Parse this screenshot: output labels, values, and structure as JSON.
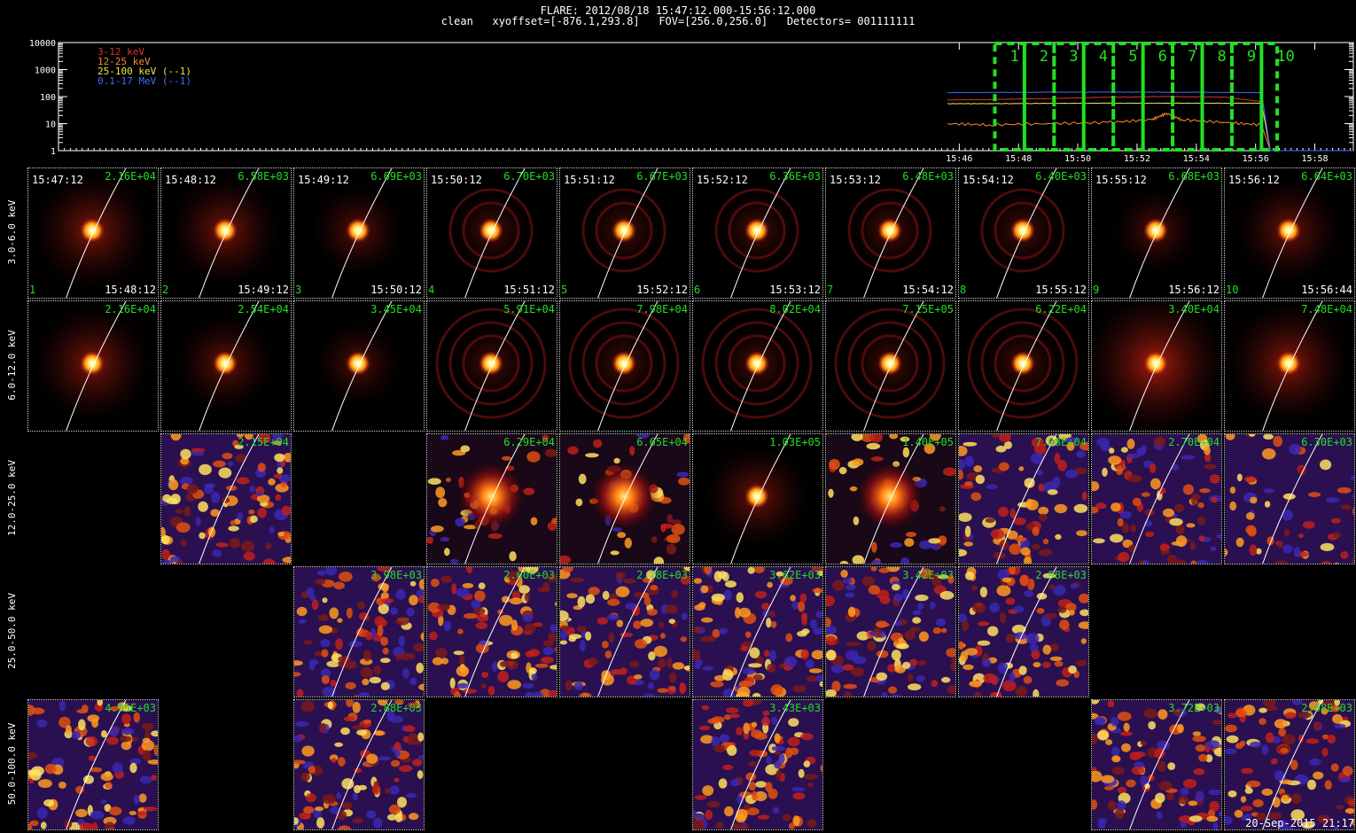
{
  "header": {
    "line1": "FLARE: 2012/08/18 15:47:12.000-15:56:12.000",
    "line2": "clean   xyoffset=[-876.1,293.8]   FOV=[256.0,256.0]   Detectors= 001111111"
  },
  "chart_data": [
    {
      "type": "line",
      "name": "lightcurve",
      "yscale": "log",
      "ylim": [
        1,
        10000
      ],
      "ytick_labels": [
        "10000",
        "1000",
        "100",
        "10",
        "1"
      ],
      "xlim_minutes": [
        15.6,
        59.3
      ],
      "x_ticks": [
        {
          "label": "15:46",
          "t": 46
        },
        {
          "label": "15:48",
          "t": 48
        },
        {
          "label": "15:50",
          "t": 50
        },
        {
          "label": "15:52",
          "t": 52
        },
        {
          "label": "15:54",
          "t": 54
        },
        {
          "label": "15:56",
          "t": 56
        },
        {
          "label": "15:58",
          "t": 58
        }
      ],
      "series": [
        {
          "name": "3-12 keV",
          "color": "#e03030",
          "x": [
            45.6,
            47,
            49,
            51,
            53,
            55,
            56.2,
            56.5
          ],
          "y": [
            75,
            78,
            85,
            95,
            100,
            95,
            65,
            1
          ]
        },
        {
          "name": "12-25 keV",
          "color": "#ff8a2a",
          "x": [
            45.6,
            47,
            49,
            51,
            52.5,
            53,
            53.5,
            55,
            56.2,
            56.5
          ],
          "y": [
            10,
            9,
            10,
            11,
            14,
            24,
            14,
            11,
            9,
            1
          ]
        },
        {
          "name": "25-100 keV (--1)",
          "color": "#e8e84a",
          "x": [
            45.6,
            47,
            49,
            51,
            53,
            55,
            56.2,
            56.5
          ],
          "y": [
            55,
            55,
            56,
            57,
            57,
            57,
            57,
            1
          ]
        },
        {
          "name": "0.1-17 MeV (--1)",
          "color": "#3f6cff",
          "x": [
            45.6,
            47,
            49,
            51,
            53,
            55,
            56.2,
            56.5,
            59.3
          ],
          "y": [
            140,
            142,
            145,
            147,
            145,
            143,
            140,
            1,
            1
          ]
        }
      ],
      "time_intervals": [
        "1",
        "2",
        "3",
        "4",
        "5",
        "6",
        "7",
        "8",
        "9",
        "10"
      ],
      "interval_bounds_minutes": [
        47.2,
        48.2,
        49.2,
        50.2,
        51.2,
        52.2,
        53.2,
        54.2,
        55.2,
        56.2,
        56.73
      ]
    },
    {
      "type": "heatmap",
      "name": "image-grid",
      "row_labels": [
        "3.0-6.0 keV",
        "6.0-12.0 keV",
        "12.0-25.0 keV",
        "25.0-50.0 keV",
        "50.0-100.0 keV"
      ],
      "rows": [
        [
          {
            "num": "1",
            "start": "15:47:12",
            "end": "15:48:12",
            "peak": "2.16E+04",
            "kind": "bright",
            "halo": 0.55
          },
          {
            "num": "2",
            "start": "15:48:12",
            "end": "15:49:12",
            "peak": "6.58E+03",
            "kind": "bright",
            "halo": 0.5
          },
          {
            "num": "3",
            "start": "15:49:12",
            "end": "15:50:12",
            "peak": "6.69E+03",
            "kind": "bright",
            "halo": 0.35
          },
          {
            "num": "4",
            "start": "15:50:12",
            "end": "15:51:12",
            "peak": "6.70E+03",
            "kind": "bright",
            "halo": 0.25,
            "rings": 2
          },
          {
            "num": "5",
            "start": "15:51:12",
            "end": "15:52:12",
            "peak": "6.67E+03",
            "kind": "bright",
            "halo": 0.25,
            "rings": 2
          },
          {
            "num": "6",
            "start": "15:52:12",
            "end": "15:53:12",
            "peak": "6.36E+03",
            "kind": "bright",
            "halo": 0.25,
            "rings": 2
          },
          {
            "num": "7",
            "start": "15:53:12",
            "end": "15:54:12",
            "peak": "6.48E+03",
            "kind": "bright",
            "halo": 0.25,
            "rings": 2
          },
          {
            "num": "8",
            "start": "15:54:12",
            "end": "15:55:12",
            "peak": "6.40E+03",
            "kind": "bright",
            "halo": 0.25,
            "rings": 2
          },
          {
            "num": "9",
            "start": "15:55:12",
            "end": "15:56:12",
            "peak": "6.68E+03",
            "kind": "bright",
            "halo": 0.3
          },
          {
            "num": "10",
            "start": "15:56:12",
            "end": "15:56:44",
            "peak": "6.64E+03",
            "kind": "bright",
            "halo": 0.45
          }
        ],
        [
          {
            "peak": "2.16E+04",
            "kind": "bright",
            "halo": 0.55
          },
          {
            "peak": "2.54E+04",
            "kind": "bright",
            "halo": 0.4
          },
          {
            "peak": "3.45E+04",
            "kind": "bright",
            "halo": 0.3
          },
          {
            "peak": "5.91E+04",
            "kind": "bright",
            "halo": 0.25,
            "rings": 3
          },
          {
            "peak": "7.98E+04",
            "kind": "bright",
            "halo": 0.25,
            "rings": 3
          },
          {
            "peak": "8.02E+04",
            "kind": "bright",
            "halo": 0.25,
            "rings": 3
          },
          {
            "peak": "7.15E+05",
            "kind": "bright",
            "halo": 0.25,
            "rings": 3
          },
          {
            "peak": "6.22E+04",
            "kind": "bright",
            "halo": 0.25,
            "rings": 3
          },
          {
            "peak": "3.40E+04",
            "kind": "bright",
            "halo": 0.75
          },
          {
            "peak": "7.48E+04",
            "kind": "bright",
            "halo": 0.6
          }
        ],
        [
          null,
          {
            "peak": "2.15E+04",
            "kind": "noise",
            "density": 0.95
          },
          null,
          {
            "peak": "6.29E+04",
            "kind": "diffuse"
          },
          {
            "peak": "6.65E+04",
            "kind": "diffuse"
          },
          {
            "peak": "1.03E+05",
            "kind": "bright",
            "halo": 0.45
          },
          {
            "peak": "1.40E+05",
            "kind": "diffuse"
          },
          {
            "peak": "7.08E+04",
            "kind": "noise",
            "density": 0.75
          },
          {
            "peak": "2.70E+04",
            "kind": "noise",
            "density": 0.8
          },
          {
            "peak": "6.30E+03",
            "kind": "stripes"
          }
        ],
        [
          null,
          null,
          {
            "peak": "3.98E+03",
            "kind": "noise",
            "density": 0.9
          },
          {
            "peak": "2.60E+03",
            "kind": "noise",
            "density": 0.9
          },
          {
            "peak": "2.78E+03",
            "kind": "noise",
            "density": 0.9
          },
          {
            "peak": "3.62E+03",
            "kind": "noise",
            "density": 0.95
          },
          {
            "peak": "3.42E+03",
            "kind": "noise",
            "density": 0.9
          },
          {
            "peak": "2.98E+03",
            "kind": "noise",
            "density": 0.9
          },
          null,
          null
        ],
        [
          {
            "peak": "4.95E+03",
            "kind": "noise",
            "density": 0.9
          },
          null,
          {
            "peak": "2.88E+03",
            "kind": "noise",
            "density": 0.95
          },
          null,
          null,
          {
            "peak": "3.43E+03",
            "kind": "noise",
            "density": 0.95
          },
          null,
          null,
          {
            "peak": "3.72E+03",
            "kind": "noise",
            "density": 0.9
          },
          {
            "peak": "2.68E+03",
            "kind": "noise",
            "density": 0.9
          }
        ]
      ]
    }
  ],
  "footer": {
    "datestamp": "20-Sep-2015 21:17"
  }
}
